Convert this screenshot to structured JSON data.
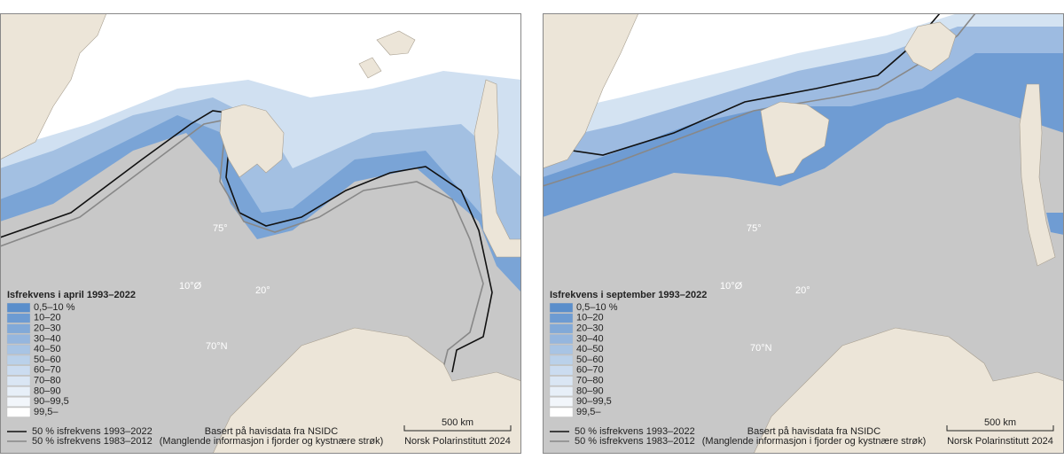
{
  "maps": [
    {
      "legend_title": "Isfrekvens i april 1993–2022",
      "classes": [
        {
          "label": "0,5–10 %",
          "color": "#5a8ecb"
        },
        {
          "label": "10–20",
          "color": "#6d9bd2"
        },
        {
          "label": "20–30",
          "color": "#81a9d8"
        },
        {
          "label": "30–40",
          "color": "#95b6de"
        },
        {
          "label": "40–50",
          "color": "#a8c4e4"
        },
        {
          "label": "50–60",
          "color": "#bad1ea"
        },
        {
          "label": "60–70",
          "color": "#cbdcf0"
        },
        {
          "label": "70–80",
          "color": "#dae6f4"
        },
        {
          "label": "80–90",
          "color": "#e7eff8"
        },
        {
          "label": "90–99,5",
          "color": "#f2f6fb"
        },
        {
          "label": "99,5–",
          "color": "#ffffff"
        }
      ],
      "lines": [
        {
          "label": "50 % isfrekvens 1993–2022",
          "color": "#111111"
        },
        {
          "label": "50 % isfrekvens 1983–2012",
          "color": "#888888"
        }
      ],
      "source": "Basert på havisdata fra NSIDC",
      "note": "(Manglende informasjon i fjorder og kystnære strøk)",
      "scale": "500 km",
      "credit": "Norsk Polarinstitutt 2024",
      "graticule": [
        "75°",
        "10°Ø",
        "20°",
        "70°N"
      ]
    },
    {
      "legend_title": "Isfrekvens i september 1993–2022",
      "classes": [
        {
          "label": "0,5–10 %",
          "color": "#5a8ecb"
        },
        {
          "label": "10–20",
          "color": "#6d9bd2"
        },
        {
          "label": "20–30",
          "color": "#81a9d8"
        },
        {
          "label": "30–40",
          "color": "#95b6de"
        },
        {
          "label": "40–50",
          "color": "#a8c4e4"
        },
        {
          "label": "50–60",
          "color": "#bad1ea"
        },
        {
          "label": "60–70",
          "color": "#cbdcf0"
        },
        {
          "label": "70–80",
          "color": "#dae6f4"
        },
        {
          "label": "80–90",
          "color": "#e7eff8"
        },
        {
          "label": "90–99,5",
          "color": "#f2f6fb"
        },
        {
          "label": "99,5–",
          "color": "#ffffff"
        }
      ],
      "lines": [
        {
          "label": "50 % isfrekvens 1993–2022",
          "color": "#111111"
        },
        {
          "label": "50 % isfrekvens 1983–2012",
          "color": "#888888"
        }
      ],
      "source": "Basert på havisdata fra NSIDC",
      "note": "(Manglende informasjon i fjorder og kystnære strøk)",
      "scale": "500 km",
      "credit": "Norsk Polarinstitutt 2024",
      "graticule": [
        "75°",
        "10°Ø",
        "20°",
        "70°N"
      ]
    }
  ]
}
